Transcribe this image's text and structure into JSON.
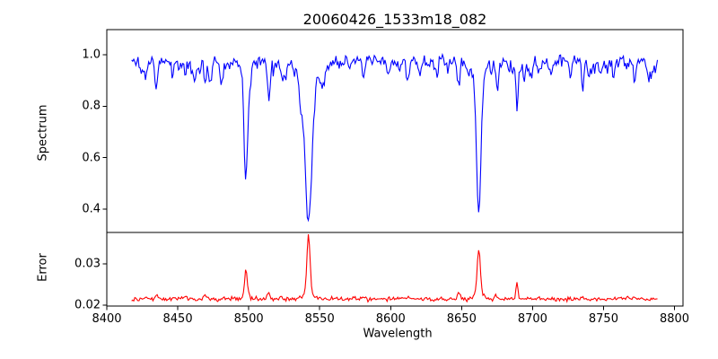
{
  "figure": {
    "title": "20060426_1533m18_082",
    "background": "#ffffff",
    "axis_color": "#000000"
  },
  "chart_data": [
    {
      "type": "line",
      "name": "spectrum-panel",
      "title": "20060426_1533m18_082",
      "ylabel": "Spectrum",
      "xlabel": "",
      "legend": "none",
      "grid": false,
      "color": "#0000ff",
      "xlim": [
        8400,
        8806
      ],
      "ylim": [
        0.309,
        1.098
      ],
      "yticks": [
        0.4,
        0.6,
        0.8,
        1.0
      ],
      "ytick_labels": [
        "0.4",
        "0.6",
        "0.8",
        "1.0"
      ],
      "x_range": [
        8417.5,
        8788
      ],
      "sample_step": 0.75,
      "continuum": 0.975,
      "noise_sigma": 0.012,
      "noise_seed": 11,
      "absorption_lines": [
        {
          "center": 8498.0,
          "depth": 0.41,
          "sigma": 1.2
        },
        {
          "center": 8498.0,
          "depth": 0.05,
          "sigma": 3.0
        },
        {
          "center": 8542.1,
          "depth": 0.54,
          "sigma": 2.3
        },
        {
          "center": 8542.1,
          "depth": 0.09,
          "sigma": 5.5
        },
        {
          "center": 8662.1,
          "depth": 0.51,
          "sigma": 1.5
        },
        {
          "center": 8662.1,
          "depth": 0.075,
          "sigma": 4.0
        },
        {
          "center": 8689.0,
          "depth": 0.2,
          "sigma": 0.8
        },
        {
          "center": 8424.5,
          "depth": 0.055,
          "sigma": 0.9
        },
        {
          "center": 8427.5,
          "depth": 0.065,
          "sigma": 0.8
        },
        {
          "center": 8435.0,
          "depth": 0.105,
          "sigma": 0.9
        },
        {
          "center": 8446.0,
          "depth": 0.05,
          "sigma": 0.8
        },
        {
          "center": 8455.0,
          "depth": 0.04,
          "sigma": 0.8
        },
        {
          "center": 8469.5,
          "depth": 0.09,
          "sigma": 0.9
        },
        {
          "center": 8481.0,
          "depth": 0.04,
          "sigma": 0.8
        },
        {
          "center": 8514.0,
          "depth": 0.115,
          "sigma": 0.9
        },
        {
          "center": 8523.0,
          "depth": 0.06,
          "sigma": 0.8
        },
        {
          "center": 8536.5,
          "depth": 0.07,
          "sigma": 0.9
        },
        {
          "center": 8552.0,
          "depth": 0.05,
          "sigma": 0.8
        },
        {
          "center": 8581.0,
          "depth": 0.06,
          "sigma": 0.9
        },
        {
          "center": 8598.0,
          "depth": 0.05,
          "sigma": 0.8
        },
        {
          "center": 8612.0,
          "depth": 0.07,
          "sigma": 0.9
        },
        {
          "center": 8621.0,
          "depth": 0.05,
          "sigma": 0.8
        },
        {
          "center": 8648.0,
          "depth": 0.1,
          "sigma": 0.9
        },
        {
          "center": 8655.0,
          "depth": 0.05,
          "sigma": 0.7
        },
        {
          "center": 8675.0,
          "depth": 0.085,
          "sigma": 0.8
        },
        {
          "center": 8694.0,
          "depth": 0.05,
          "sigma": 0.7
        },
        {
          "center": 8713.0,
          "depth": 0.06,
          "sigma": 0.8
        },
        {
          "center": 8727.0,
          "depth": 0.05,
          "sigma": 0.8
        },
        {
          "center": 8735.5,
          "depth": 0.1,
          "sigma": 0.8
        },
        {
          "center": 8748.0,
          "depth": 0.05,
          "sigma": 0.8
        },
        {
          "center": 8757.0,
          "depth": 0.06,
          "sigma": 0.8
        },
        {
          "center": 8772.0,
          "depth": 0.1,
          "sigma": 0.8
        },
        {
          "center": 8782.0,
          "depth": 0.05,
          "sigma": 0.7
        }
      ],
      "micro_lines": {
        "count": 60,
        "depth_range": [
          0.01,
          0.05
        ],
        "sigma_range": [
          0.5,
          1.1
        ],
        "seed": 13
      },
      "key_points": [
        [
          8498.0,
          0.52
        ],
        [
          8514.0,
          0.86
        ],
        [
          8542.1,
          0.345
        ],
        [
          8648.0,
          0.87
        ],
        [
          8662.1,
          0.39
        ],
        [
          8689.0,
          0.78
        ],
        [
          8735.5,
          0.87
        ],
        [
          8772.0,
          0.87
        ]
      ]
    },
    {
      "type": "line",
      "name": "error-panel",
      "title": "",
      "ylabel": "Error",
      "xlabel": "Wavelength",
      "legend": "none",
      "grid": false,
      "color": "#ff0000",
      "xlim": [
        8400,
        8806
      ],
      "ylim": [
        0.0198,
        0.0376
      ],
      "yticks": [
        0.02,
        0.03
      ],
      "ytick_labels": [
        "0.02",
        "0.03"
      ],
      "xticks": [
        8400,
        8450,
        8500,
        8550,
        8600,
        8650,
        8700,
        8750,
        8800
      ],
      "xtick_labels": [
        "8400",
        "8450",
        "8500",
        "8550",
        "8600",
        "8650",
        "8700",
        "8750",
        "8800"
      ],
      "x_range": [
        8417.5,
        8788
      ],
      "sample_step": 0.75,
      "baseline": 0.0215,
      "noise_sigma": 0.00025,
      "noise_seed": 29,
      "peaks": [
        {
          "center": 8542.1,
          "height": 0.0143,
          "sigma": 1.1
        },
        {
          "center": 8542.1,
          "height": 0.0013,
          "sigma": 3.5
        },
        {
          "center": 8662.1,
          "height": 0.0112,
          "sigma": 1.1
        },
        {
          "center": 8662.1,
          "height": 0.0012,
          "sigma": 3.0
        },
        {
          "center": 8498.0,
          "height": 0.0062,
          "sigma": 0.9
        },
        {
          "center": 8498.0,
          "height": 0.001,
          "sigma": 2.5
        },
        {
          "center": 8689.0,
          "height": 0.0042,
          "sigma": 0.7
        },
        {
          "center": 8514.0,
          "height": 0.0016,
          "sigma": 0.9
        },
        {
          "center": 8648.0,
          "height": 0.0016,
          "sigma": 0.9
        },
        {
          "center": 8435.0,
          "height": 0.0008,
          "sigma": 1.0
        },
        {
          "center": 8427.0,
          "height": 0.0006,
          "sigma": 1.0
        },
        {
          "center": 8455.0,
          "height": 0.0007,
          "sigma": 1.0
        },
        {
          "center": 8469.5,
          "height": 0.0008,
          "sigma": 1.0
        },
        {
          "center": 8523.0,
          "height": 0.0008,
          "sigma": 0.9
        },
        {
          "center": 8581.0,
          "height": 0.0005,
          "sigma": 0.9
        },
        {
          "center": 8612.0,
          "height": 0.0005,
          "sigma": 0.9
        },
        {
          "center": 8674.5,
          "height": 0.0007,
          "sigma": 0.8
        },
        {
          "center": 8735.5,
          "height": 0.0005,
          "sigma": 0.8
        },
        {
          "center": 8762.0,
          "height": 0.0006,
          "sigma": 0.8
        },
        {
          "center": 8772.0,
          "height": 0.0005,
          "sigma": 0.8
        }
      ],
      "key_points": [
        [
          8498.0,
          0.0286
        ],
        [
          8514.0,
          0.023
        ],
        [
          8542.1,
          0.0369
        ],
        [
          8648.0,
          0.023
        ],
        [
          8662.1,
          0.0337
        ],
        [
          8689.0,
          0.0255
        ]
      ]
    }
  ]
}
